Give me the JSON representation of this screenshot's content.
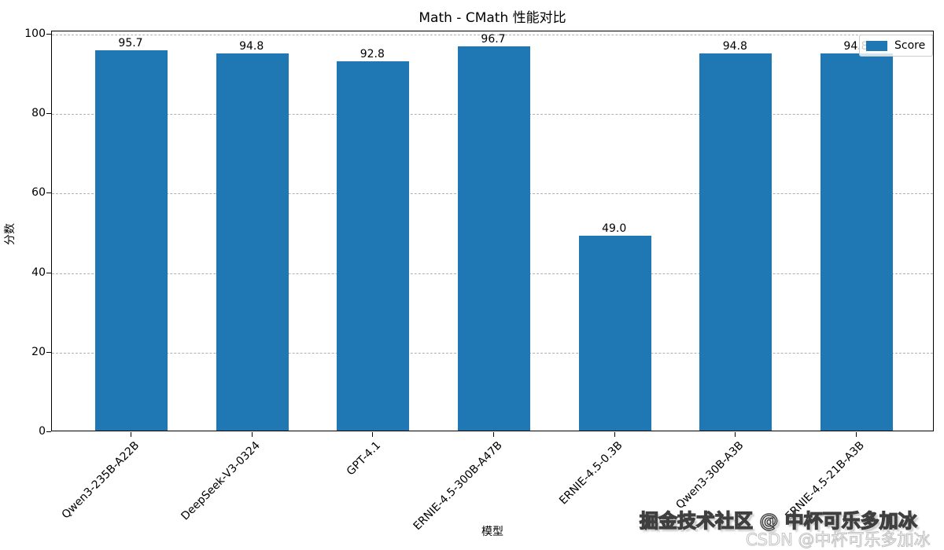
{
  "chart_data": {
    "type": "bar",
    "title": "Math - CMath 性能对比",
    "xlabel": "模型",
    "ylabel": "分数",
    "categories": [
      "Qwen3-235B-A22B",
      "DeepSeek-V3-0324",
      "GPT-4.1",
      "ERNIE-4.5-300B-A47B",
      "ERNIE-4.5-0.3B",
      "Qwen3-30B-A3B",
      "ERNIE-4.5-21B-A3B"
    ],
    "values": [
      95.7,
      94.8,
      92.8,
      96.7,
      49.0,
      94.8,
      94.8
    ],
    "value_labels": [
      "95.7",
      "94.8",
      "92.8",
      "96.7",
      "49.0",
      "94.8",
      "94.8"
    ],
    "yticks": [
      0,
      20,
      40,
      60,
      80,
      100
    ],
    "ylim": [
      0,
      100.8
    ],
    "grid": "horizontal-dashed",
    "legend": {
      "label": "Score",
      "position": "upper-right"
    },
    "bar_color": "#1f77b4",
    "gridline_color": "#b0b0b0"
  },
  "watermarks": {
    "primary": "掘金技术社区 @ 中杯可乐多加冰",
    "secondary": "CSDN @中杯可乐多加冰"
  }
}
